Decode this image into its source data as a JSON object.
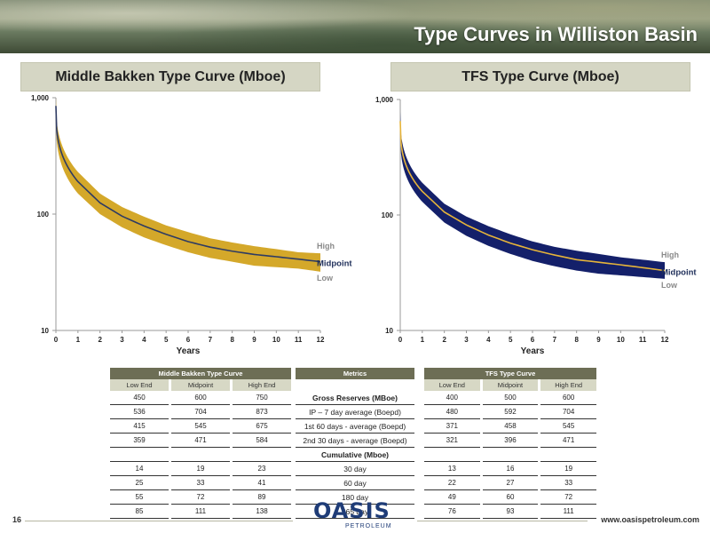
{
  "page": {
    "title": "Type Curves in Williston Basin",
    "page_number": "16",
    "url": "www.oasispetroleum.com",
    "logo_word": "OASIS",
    "logo_sub": "PETROLEUM"
  },
  "left_chart": {
    "header": "Middle Bakken Type Curve (Mboe)",
    "legend": {
      "high": "High",
      "mid": "Midpoint",
      "low": "Low"
    }
  },
  "right_chart": {
    "header": "TFS Type Curve (Mboe)",
    "legend": {
      "high": "High",
      "mid": "Midpoint",
      "low": "Low"
    }
  },
  "chart_data": [
    {
      "type": "area",
      "title": "Middle Bakken Type Curve (Mboe)",
      "xlabel": "Years",
      "ylabel": "",
      "y_scale": "log",
      "ylim": [
        10,
        1000
      ],
      "xlim": [
        0,
        12
      ],
      "x_ticks": [
        "0",
        "1",
        "2",
        "3",
        "4",
        "5",
        "6",
        "7",
        "8",
        "9",
        "10",
        "11",
        "12"
      ],
      "y_ticks": [
        "10",
        "100",
        "1,000"
      ],
      "x": [
        0,
        1,
        2,
        3,
        4,
        5,
        6,
        7,
        8,
        9,
        10,
        11,
        12
      ],
      "series": [
        {
          "name": "High",
          "values": [
            1000,
            230,
            150,
            115,
            95,
            80,
            70,
            62,
            57,
            53,
            50,
            47,
            46
          ]
        },
        {
          "name": "Midpoint",
          "values": [
            850,
            190,
            125,
            96,
            79,
            67,
            58,
            52,
            48,
            45,
            43,
            41,
            39
          ]
        },
        {
          "name": "Low",
          "values": [
            680,
            150,
            100,
            77,
            63,
            54,
            47,
            42,
            39,
            36,
            35,
            34,
            32
          ]
        }
      ],
      "colors": {
        "band": "#d4a82a",
        "line": "#2e3b63"
      },
      "grid": false,
      "legend": "right"
    },
    {
      "type": "area",
      "title": "TFS Type Curve (Mboe)",
      "xlabel": "Years",
      "ylabel": "",
      "y_scale": "log",
      "ylim": [
        10,
        1000
      ],
      "xlim": [
        0,
        12
      ],
      "x_ticks": [
        "0",
        "1",
        "2",
        "3",
        "4",
        "5",
        "6",
        "7",
        "8",
        "9",
        "10",
        "11",
        "12"
      ],
      "y_ticks": [
        "10",
        "100",
        "1,000"
      ],
      "x": [
        0,
        1,
        2,
        3,
        4,
        5,
        6,
        7,
        8,
        9,
        10,
        11,
        12
      ],
      "series": [
        {
          "name": "High",
          "values": [
            780,
            190,
            125,
            97,
            80,
            68,
            59,
            53,
            49,
            46,
            43,
            41,
            39
          ]
        },
        {
          "name": "Midpoint",
          "values": [
            650,
            160,
            106,
            82,
            67,
            57,
            50,
            45,
            41,
            39,
            37,
            35,
            33
          ]
        },
        {
          "name": "Low",
          "values": [
            520,
            130,
            86,
            66,
            54,
            46,
            40,
            36,
            33,
            31,
            30,
            29,
            28
          ]
        }
      ],
      "colors": {
        "band": "#14206a",
        "line": "#e6b43a"
      },
      "grid": false,
      "legend": "right"
    }
  ],
  "tables": {
    "left": {
      "group": "Middle Bakken Type Curve",
      "cols": [
        "Low End",
        "Midpoint",
        "High End"
      ],
      "rows": [
        [
          "450",
          "600",
          "750"
        ],
        [
          "536",
          "704",
          "873"
        ],
        [
          "415",
          "545",
          "675"
        ],
        [
          "359",
          "471",
          "584"
        ],
        [
          "",
          "",
          ""
        ],
        [
          "14",
          "19",
          "23"
        ],
        [
          "25",
          "33",
          "41"
        ],
        [
          "55",
          "72",
          "89"
        ],
        [
          "85",
          "111",
          "138"
        ]
      ]
    },
    "metrics": {
      "group": "Metrics",
      "rows": [
        "Gross Reserves (MBoe)",
        "IP – 7 day average (Boepd)",
        "1st 60 days - average (Boepd)",
        "2nd 30 days - average (Boepd)",
        "Cumulative (Mboe)",
        "30 day",
        "60 day",
        "180 day",
        "365 day"
      ]
    },
    "right": {
      "group": "TFS Type Curve",
      "cols": [
        "Low End",
        "Midpoint",
        "High End"
      ],
      "rows": [
        [
          "400",
          "500",
          "600"
        ],
        [
          "480",
          "592",
          "704"
        ],
        [
          "371",
          "458",
          "545"
        ],
        [
          "321",
          "396",
          "471"
        ],
        [
          "",
          "",
          ""
        ],
        [
          "13",
          "16",
          "19"
        ],
        [
          "22",
          "27",
          "33"
        ],
        [
          "49",
          "60",
          "72"
        ],
        [
          "76",
          "93",
          "111"
        ]
      ]
    }
  }
}
